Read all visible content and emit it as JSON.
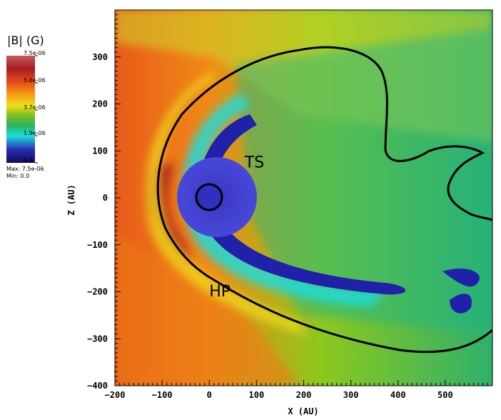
{
  "chart_data": {
    "type": "heatmap",
    "title": "",
    "xlabel": "X (AU)",
    "ylabel": "Z (AU)",
    "xlim": [
      -200,
      600
    ],
    "ylim": [
      -400,
      400
    ],
    "x_ticks": [
      -200,
      -100,
      0,
      100,
      200,
      300,
      400,
      500
    ],
    "y_ticks": [
      300,
      200,
      100,
      0,
      -100,
      -200,
      -300,
      -400
    ],
    "grid": false,
    "colorbar": {
      "title": "|B| (G)",
      "tick_labels": [
        "7.5e-06",
        "5.6e-06",
        "3.7e-06",
        "1.9e-06",
        "0.0"
      ],
      "tick_values": [
        7.5e-06,
        5.6e-06,
        3.7e-06,
        1.9e-06,
        0.0
      ],
      "colors": [
        "#a51d24",
        "#e84d18",
        "#f5a313",
        "#eede1e",
        "#82c21c",
        "#2bb45a",
        "#1cdcdc",
        "#2a2ab0",
        "#120c5a"
      ],
      "max_text": "Max:  7.5e-06",
      "min_text": "Min:  0.0"
    },
    "annotations": [
      {
        "text": "TS",
        "x": 75,
        "z": 65
      },
      {
        "text": "HP",
        "x": 0,
        "z": -210
      }
    ]
  }
}
